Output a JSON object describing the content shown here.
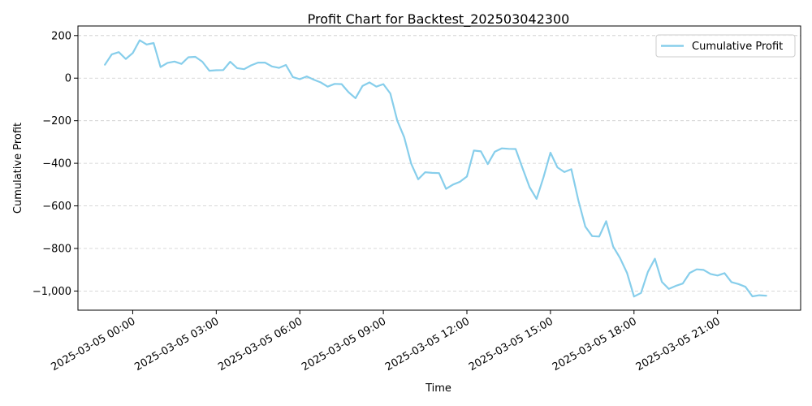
{
  "chart_data": {
    "type": "line",
    "title": "Profit Chart for Backtest_202503042300",
    "xlabel": "Time",
    "ylabel": "Cumulative Profit",
    "x_tick_labels": [
      "2025-03-05 00:00",
      "2025-03-05 03:00",
      "2025-03-05 06:00",
      "2025-03-05 09:00",
      "2025-03-05 12:00",
      "2025-03-05 15:00",
      "2025-03-05 18:00",
      "2025-03-05 21:00"
    ],
    "y_ticks": [
      200,
      0,
      -200,
      -400,
      -600,
      -800,
      -1000
    ],
    "y_tick_labels": [
      "200",
      "0",
      "−200",
      "−400",
      "−600",
      "−800",
      "−1,000"
    ],
    "ylim": [
      -1090,
      245
    ],
    "xlim": [
      "2025-03-04 22:02",
      "2025-03-05 23:59"
    ],
    "grid": {
      "y": true,
      "x": false,
      "style": "dashed"
    },
    "legend": {
      "position": "top-right",
      "entries": [
        "Cumulative Profit"
      ]
    },
    "series": [
      {
        "name": "Cumulative Profit",
        "color": "#87CEEB",
        "x": [
          "2025-03-04 23:00",
          "2025-03-04 23:15",
          "2025-03-04 23:30",
          "2025-03-04 23:45",
          "2025-03-05 00:00",
          "2025-03-05 00:15",
          "2025-03-05 00:30",
          "2025-03-05 00:45",
          "2025-03-05 01:00",
          "2025-03-05 01:15",
          "2025-03-05 01:30",
          "2025-03-05 01:45",
          "2025-03-05 02:00",
          "2025-03-05 02:15",
          "2025-03-05 02:30",
          "2025-03-05 02:45",
          "2025-03-05 03:00",
          "2025-03-05 03:15",
          "2025-03-05 03:30",
          "2025-03-05 03:45",
          "2025-03-05 04:00",
          "2025-03-05 04:15",
          "2025-03-05 04:30",
          "2025-03-05 04:45",
          "2025-03-05 05:00",
          "2025-03-05 05:15",
          "2025-03-05 05:30",
          "2025-03-05 05:45",
          "2025-03-05 06:00",
          "2025-03-05 06:15",
          "2025-03-05 06:30",
          "2025-03-05 06:45",
          "2025-03-05 07:00",
          "2025-03-05 07:15",
          "2025-03-05 07:30",
          "2025-03-05 07:45",
          "2025-03-05 08:00",
          "2025-03-05 08:15",
          "2025-03-05 08:30",
          "2025-03-05 08:45",
          "2025-03-05 09:00",
          "2025-03-05 09:15",
          "2025-03-05 09:30",
          "2025-03-05 09:45",
          "2025-03-05 10:00",
          "2025-03-05 10:15",
          "2025-03-05 10:30",
          "2025-03-05 10:45",
          "2025-03-05 11:00",
          "2025-03-05 11:15",
          "2025-03-05 11:30",
          "2025-03-05 11:45",
          "2025-03-05 12:00",
          "2025-03-05 12:15",
          "2025-03-05 12:30",
          "2025-03-05 12:45",
          "2025-03-05 13:00",
          "2025-03-05 13:15",
          "2025-03-05 13:30",
          "2025-03-05 13:45",
          "2025-03-05 14:00",
          "2025-03-05 14:15",
          "2025-03-05 14:30",
          "2025-03-05 14:45",
          "2025-03-05 15:00",
          "2025-03-05 15:15",
          "2025-03-05 15:30",
          "2025-03-05 15:45",
          "2025-03-05 16:00",
          "2025-03-05 16:15",
          "2025-03-05 16:30",
          "2025-03-05 16:45",
          "2025-03-05 17:00",
          "2025-03-05 17:15",
          "2025-03-05 17:30",
          "2025-03-05 17:45",
          "2025-03-05 18:00",
          "2025-03-05 18:15",
          "2025-03-05 18:30",
          "2025-03-05 18:45",
          "2025-03-05 19:00",
          "2025-03-05 19:15",
          "2025-03-05 19:30",
          "2025-03-05 19:45",
          "2025-03-05 20:00",
          "2025-03-05 20:15",
          "2025-03-05 20:30",
          "2025-03-05 20:45",
          "2025-03-05 21:00",
          "2025-03-05 21:15",
          "2025-03-05 21:30",
          "2025-03-05 21:45",
          "2025-03-05 22:00",
          "2025-03-05 22:15",
          "2025-03-05 22:30",
          "2025-03-05 22:45"
        ],
        "values": [
          63,
          112,
          122,
          90,
          118,
          178,
          158,
          165,
          52,
          72,
          78,
          67,
          98,
          100,
          77,
          35,
          37,
          38,
          77,
          47,
          42,
          60,
          73,
          73,
          55,
          48,
          62,
          5,
          -5,
          8,
          -7,
          -20,
          -40,
          -27,
          -28,
          -66,
          -94,
          -37,
          -20,
          -40,
          -28,
          -72,
          -200,
          -278,
          -402,
          -475,
          -442,
          -445,
          -446,
          -520,
          -500,
          -487,
          -462,
          -340,
          -344,
          -404,
          -346,
          -330,
          -332,
          -333,
          -424,
          -512,
          -567,
          -466,
          -350,
          -419,
          -441,
          -428,
          -573,
          -697,
          -742,
          -744,
          -672,
          -791,
          -845,
          -915,
          -1026,
          -1009,
          -910,
          -848,
          -957,
          -990,
          -976,
          -965,
          -915,
          -898,
          -901,
          -920,
          -927,
          -916,
          -958,
          -967,
          -980,
          -1025,
          -1020,
          -1022
        ]
      }
    ]
  }
}
